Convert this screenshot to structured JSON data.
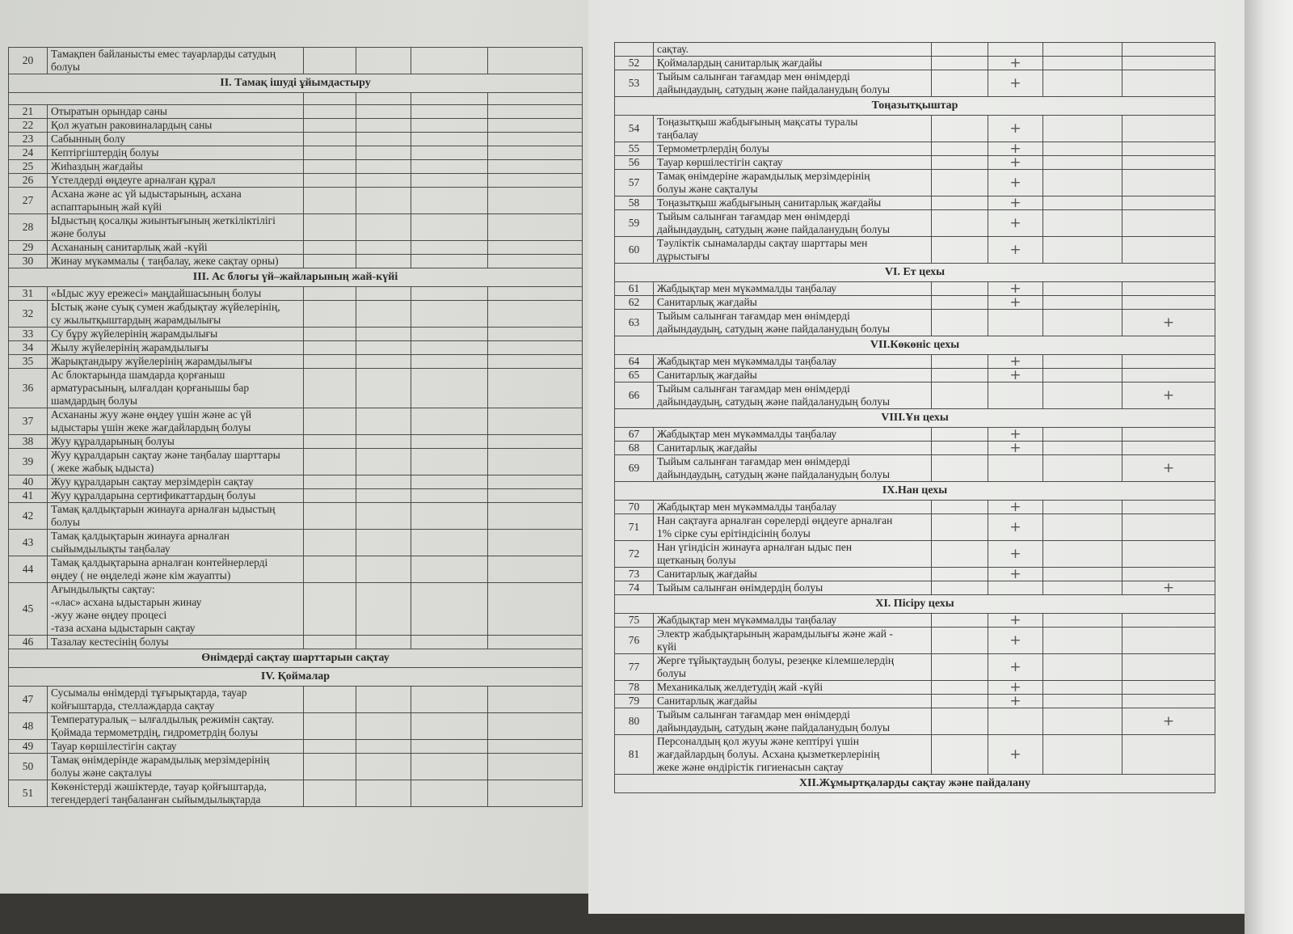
{
  "left_page": {
    "rows": [
      {
        "type": "row",
        "num": "20",
        "text": "Тамақпен  байланысты емес  тауарларды  сатудың\nболуы"
      },
      {
        "type": "section",
        "text": "II. Тамақ ішуді  ұйымдастыру"
      },
      {
        "type": "blank"
      },
      {
        "type": "row",
        "num": "21",
        "text": "Отыратын орындар саны"
      },
      {
        "type": "row",
        "num": "22",
        "text": "Қол жуатын  раковиналардың  саны"
      },
      {
        "type": "row",
        "num": "23",
        "text": " Сабынның болу"
      },
      {
        "type": "row",
        "num": "24",
        "text": " Кептіргіштердің болуы"
      },
      {
        "type": "row",
        "num": "25",
        "text": "Жиһаздың  жағдайы"
      },
      {
        "type": "row",
        "num": "26",
        "text": "Үстелдерді  өңдеуге  арналған құрал"
      },
      {
        "type": "row",
        "num": "27",
        "text": "Асхана  және ас үй  ыдыстарының, асхана\nаспаптарының  жай күйі"
      },
      {
        "type": "row",
        "num": "28",
        "text": "Ыдыстың  қосалқы  жиынтығының  жеткіліктілігі\nжәне  болуы"
      },
      {
        "type": "row",
        "num": "29",
        "text": "Асхананың  санитарлық жай -күйі"
      },
      {
        "type": "row",
        "num": "30",
        "text": "Жинау  мүкәммалы ( таңбалау, жеке сақтау орны)"
      },
      {
        "type": "section",
        "text": "III. Ас блогы үй–жайларының жай-күйі"
      },
      {
        "type": "row",
        "num": "31",
        "text": "«Ыдыс жуу ережесі» маңдайшасының болуы"
      },
      {
        "type": "row",
        "num": "32",
        "text": "Ыстық және суық  сумен  жабдықтау жүйелерінің,\nсу жылытқыштардың жарамдылығы"
      },
      {
        "type": "row",
        "num": "33",
        "text": " Су бұру  жүйелерінің жарамдылығы"
      },
      {
        "type": "row",
        "num": "34",
        "text": "Жылу жүйелерінің жарамдылығы"
      },
      {
        "type": "row",
        "num": "35",
        "text": "Жарықтандыру жүйелерінің жарамдылығы"
      },
      {
        "type": "row",
        "num": "36",
        "text": "Ас блоктарында шамдарда қорғаныш\nарматурасының, ылғалдан қорғанышы  бар\nшамдардың  болуы"
      },
      {
        "type": "row",
        "num": "37",
        "text": "Асхананы жуу және өңдеу үшін және ас үй\nыдыстары үшін жеке жағдайлардың болуы"
      },
      {
        "type": "row",
        "num": "38",
        "text": "Жуу құралдарының болуы"
      },
      {
        "type": "row",
        "num": "39",
        "text": "Жуу құралдарын сақтау  және таңбалау шарттары\n( жеке жабық ыдыста)"
      },
      {
        "type": "row",
        "num": "40",
        "text": "Жуу құралдарын сақтау  мерзімдерін  сақтау"
      },
      {
        "type": "row",
        "num": "41",
        "text": "Жуу құралдарына сертификаттардың болуы"
      },
      {
        "type": "row",
        "num": "42",
        "text": "Тамақ қалдықтарын жинауға  арналған  ыдыстың\nболуы"
      },
      {
        "type": "row",
        "num": "43",
        "text": "Тамақ қалдықтарын жинауға арналған\nсыйымдылықты таңбалау"
      },
      {
        "type": "row",
        "num": "44",
        "text": "Тамақ қалдықтарына арналған контейнерлерді\nөңдеу ( не өңделеді және кім  жауапты)"
      },
      {
        "type": "row",
        "num": "45",
        "text": "Ағындылықты  сақтау:\n-«лас» асхана ыдыстарын жинау\n-жуу және өңдеу процесі\n-таза асхана  ыдыстарын сақтау"
      },
      {
        "type": "row",
        "num": "46",
        "text": "Тазалау кестесінің болуы"
      },
      {
        "type": "section",
        "text": "Өнімдерді  сақтау шарттарын  сақтау"
      },
      {
        "type": "section",
        "text": "IV. Қоймалар"
      },
      {
        "type": "row",
        "num": "47",
        "text": "Сусымалы өнімдерді тұғырықтарда, тауар\nкойғыштарда, стеллаждарда сақтау"
      },
      {
        "type": "row",
        "num": "48",
        "text": "Температуралық – ылғалдылық режимін сақтау.\nҚоймада термометрдің, гидрометрдің болуы"
      },
      {
        "type": "row",
        "num": "49",
        "text": "Тауар көршілестігін сақтау"
      },
      {
        "type": "row",
        "num": "50",
        "text": "Тамақ өнімдерінде жарамдылық мерзімдерінің\nболуы және сақталуы"
      },
      {
        "type": "row",
        "num": "51",
        "text": "Көкөністерді жәшіктерде, тауар қойғыштарда,\nтегендердегі таңбаланған  сыйымдылықтарда"
      }
    ]
  },
  "right_page": {
    "rows": [
      {
        "type": "row",
        "num": "",
        "text": "сақтау."
      },
      {
        "type": "row",
        "num": "52",
        "text": "Қоймалардың санитарлық жағдайы",
        "mark": "+",
        "mark_col": 1
      },
      {
        "type": "row",
        "num": "53",
        "text": "Тыйым салынған тағамдар мен өнімдерді\nдайындаудың, сатудың және пайдаланудың болуы",
        "mark": "+",
        "mark_col": 1
      },
      {
        "type": "section",
        "text": "Тоңазытқыштар"
      },
      {
        "type": "row",
        "num": "54",
        "text": "Тоңазытқыш жабдығының мақсаты туралы\nтаңбалау",
        "mark": "+",
        "mark_col": 1
      },
      {
        "type": "row",
        "num": "55",
        "text": "Термометрлердің болуы",
        "mark": "+",
        "mark_col": 1
      },
      {
        "type": "row",
        "num": "56",
        "text": "Тауар көршілестігін  сақтау",
        "mark": "+",
        "mark_col": 1
      },
      {
        "type": "row",
        "num": "57",
        "text": "Тамақ өнімдеріне жарамдылық мерзімдерінің\nболуы және сақталуы",
        "mark": "+",
        "mark_col": 1
      },
      {
        "type": "row",
        "num": "58",
        "text": "Тоңазытқыш жабдығының санитарлық жағдайы",
        "mark": "+",
        "mark_col": 1
      },
      {
        "type": "row",
        "num": "59",
        "text": "Тыйым  салынған тағамдар мен өнімдерді\nдайындаудың, сатудың және пайдаланудың болуы",
        "mark": "+",
        "mark_col": 1
      },
      {
        "type": "row",
        "num": "60",
        "text": "Тәуліктік  сынамаларды  сақтау шарттары  мен\nдұрыстығы",
        "mark": "+",
        "mark_col": 1
      },
      {
        "type": "section",
        "text": "VI. Ет цехы"
      },
      {
        "type": "row",
        "num": "61",
        "text": "Жабдықтар мен  мүкәммалды таңбалау",
        "mark": "+",
        "mark_col": 1
      },
      {
        "type": "row",
        "num": "62",
        "text": " Санитарлық  жағдайы",
        "mark": "+",
        "mark_col": 1
      },
      {
        "type": "row",
        "num": "63",
        "text": "Тыйым салынған  тағамдар мен өнімдерді\nдайындаудың, сатудың және пайдаланудың болуы",
        "mark": "+",
        "mark_col": 3
      },
      {
        "type": "section",
        "text": "VII.Көкөніс цехы"
      },
      {
        "type": "row",
        "num": "64",
        "text": "Жабдықтар мен  мүкәммалды таңбалау",
        "mark": "+",
        "mark_col": 1
      },
      {
        "type": "row",
        "num": "65",
        "text": "Санитарлық  жағдайы",
        "mark": "+",
        "mark_col": 1
      },
      {
        "type": "row",
        "num": "66",
        "text": "Тыйым салынған  тағамдар мен өнімдерді\nдайындаудың, сатудың және пайдаланудың болуы",
        "mark": "+",
        "mark_col": 3
      },
      {
        "type": "section",
        "text": "VIII.Ұн цехы"
      },
      {
        "type": "row",
        "num": "67",
        "text": "Жабдықтар мен  мүкәммалды таңбалау",
        "mark": "+",
        "mark_col": 1
      },
      {
        "type": "row",
        "num": "68",
        "text": "Санитарлық  жағдайы",
        "mark": "+",
        "mark_col": 1
      },
      {
        "type": "row",
        "num": "69",
        "text": "Тыйым салынған  тағамдар мен өнімдерді\nдайындаудың, сатудың және пайдаланудың болуы",
        "mark": "+",
        "mark_col": 3
      },
      {
        "type": "section",
        "text": "IX.Нан цехы"
      },
      {
        "type": "row",
        "num": "70",
        "text": "Жабдықтар мен  мүкәммалды таңбалау",
        "mark": "+",
        "mark_col": 1
      },
      {
        "type": "row",
        "num": "71",
        "text": "Нан  сақтауға арналған сөрелерді өңдеуге арналған\n1% сірке суы ерітіндісінің болуы",
        "mark": "+",
        "mark_col": 1
      },
      {
        "type": "row",
        "num": "72",
        "text": "Нан үгіндісін жинауға арналған ыдыс пен\nщетканың  болуы",
        "mark": "+",
        "mark_col": 1
      },
      {
        "type": "row",
        "num": "73",
        "text": "Санитарлық жағдайы",
        "mark": "+",
        "mark_col": 1
      },
      {
        "type": "row",
        "num": "74",
        "text": "Тыйым салынған өнімдердің болуы",
        "mark": "+",
        "mark_col": 3
      },
      {
        "type": "section",
        "text": "XI. Пісіру цехы"
      },
      {
        "type": "row",
        "num": "75",
        "text": "Жабдықтар мен  мүкәммалды таңбалау",
        "mark": "+",
        "mark_col": 1
      },
      {
        "type": "row",
        "num": "76",
        "text": "Электр жабдықтарының жарамдылығы және  жай -\nкүйі",
        "mark": "+",
        "mark_col": 1
      },
      {
        "type": "row",
        "num": "77",
        "text": "Жерге тұйықтаудың болуы, резеңке кілемшелердің\nболуы",
        "mark": "+",
        "mark_col": 1
      },
      {
        "type": "row",
        "num": "78",
        "text": "Механикалық желдетудің жай -күйі",
        "mark": "+",
        "mark_col": 1
      },
      {
        "type": "row",
        "num": "79",
        "text": "Санитарлық жағдайы",
        "mark": "+",
        "mark_col": 1
      },
      {
        "type": "row",
        "num": "80",
        "text": "Тыйым салынған  тағамдар мен өнімдерді\nдайындаудың, сатудың және пайдаланудың болуы",
        "mark": "+",
        "mark_col": 3
      },
      {
        "type": "row",
        "num": "81",
        "text": "Персоналдың қол жууы және кептіруі үшін\nжағдайлардың болуы. Асхана қызметкерлерінің\nжеке және өндірістік гигиенасын сақтау",
        "mark": "+",
        "mark_col": 1
      },
      {
        "type": "section",
        "text": "XII.Жұмыртқаларды  сақтау және пайдалану"
      }
    ]
  }
}
